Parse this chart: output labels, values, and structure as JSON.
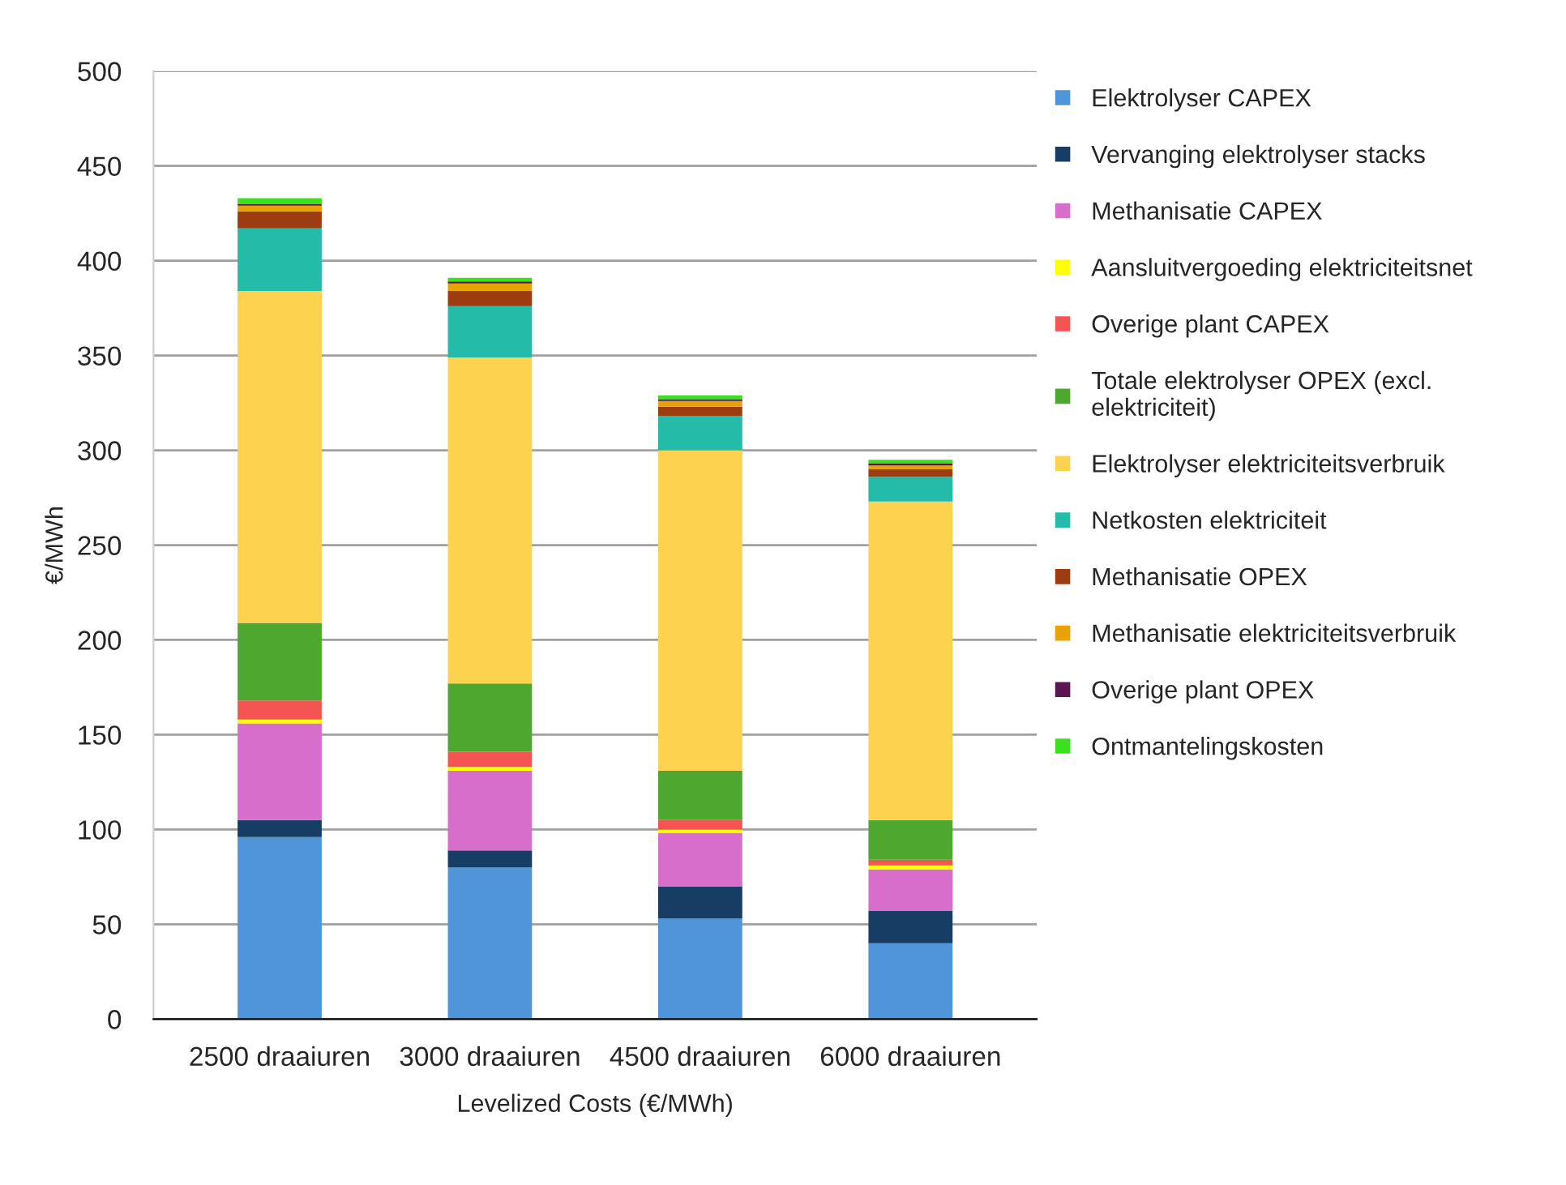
{
  "chart_data": {
    "type": "bar",
    "stacked": true,
    "xlabel": "Levelized Costs (€/MWh)",
    "ylabel": "€/MWh",
    "categories": [
      "2500 draaiuren",
      "3000 draaiuren",
      "4500 draaiuren",
      "6000 draaiuren"
    ],
    "ylim": [
      0,
      500
    ],
    "yticks": [
      0,
      50,
      100,
      150,
      200,
      250,
      300,
      350,
      400,
      450,
      500
    ],
    "grid": "y",
    "legend": "right",
    "series": [
      {
        "name": "Elektrolyser CAPEX",
        "color": "#4e95d9",
        "values": [
          96,
          80,
          53,
          40
        ]
      },
      {
        "name": "Vervanging elektrolyser stacks",
        "color": "#163e64",
        "values": [
          9,
          9,
          17,
          17
        ]
      },
      {
        "name": "Methanisatie CAPEX",
        "color": "#d86ecc",
        "values": [
          51,
          42,
          28,
          22
        ]
      },
      {
        "name": "Aansluitvergoeding elektriciteitsnet",
        "color": "#ffff00",
        "values": [
          2,
          2,
          2,
          2
        ]
      },
      {
        "name": "Overige plant CAPEX",
        "color": "#f55552",
        "values": [
          10,
          8,
          5,
          3
        ]
      },
      {
        "name": "Totale elektrolyser OPEX (excl.\nelektriciteit)",
        "color": "#4ea72e",
        "values": [
          41,
          36,
          26,
          21
        ]
      },
      {
        "name": "Elektrolyser elektriciteitsverbruik",
        "color": "#fdd24f",
        "values": [
          175,
          172,
          169,
          168
        ]
      },
      {
        "name": "Netkosten elektriciteit",
        "color": "#25bba9",
        "values": [
          33,
          27,
          18,
          13
        ]
      },
      {
        "name": "Methanisatie OPEX",
        "color": "#9e3c11",
        "values": [
          9,
          8,
          5,
          4
        ]
      },
      {
        "name": "Methanisatie elektriciteitsverbruik",
        "color": "#e8a202",
        "values": [
          3,
          4,
          3,
          2
        ]
      },
      {
        "name": "Overige plant OPEX",
        "color": "#5a1650",
        "values": [
          1,
          1,
          1,
          1
        ]
      },
      {
        "name": "Ontmantelingskosten",
        "color": "#3be21c",
        "values": [
          3,
          2,
          2,
          2
        ]
      }
    ]
  }
}
